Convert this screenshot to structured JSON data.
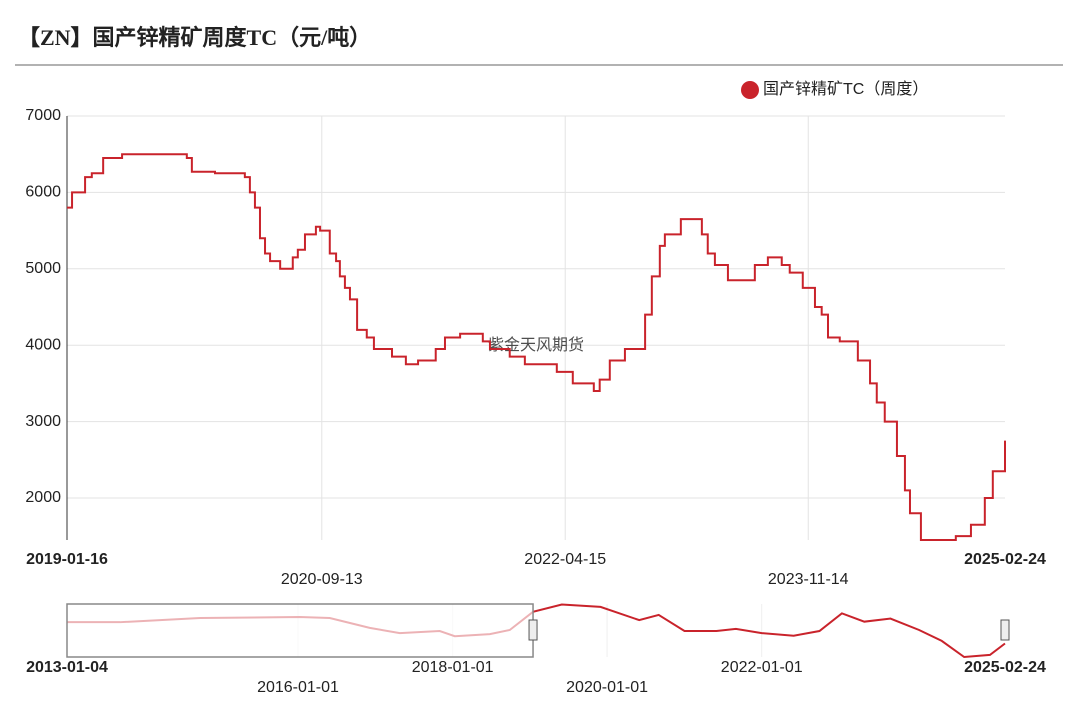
{
  "chart_data": [
    {
      "type": "line",
      "title": "【ZN】国产锌精矿周度TC（元/吨）",
      "legend": "top-right",
      "grid": true,
      "step": true,
      "watermark": "紫金天风期货",
      "x": [
        "2019-01-16",
        "2019-01-28",
        "2019-02-28",
        "2019-03-16",
        "2019-04-12",
        "2019-05-27",
        "2019-10-21",
        "2019-10-28",
        "2019-11-09",
        "2020-01-03",
        "2020-02-27",
        "2020-03-14",
        "2020-03-26",
        "2020-04-07",
        "2020-04-19",
        "2020-05-01",
        "2020-05-13",
        "2020-06-06",
        "2020-07-01",
        "2020-07-06",
        "2020-07-18",
        "2020-08-04",
        "2020-08-30",
        "2020-09-09",
        "2020-10-02",
        "2020-10-17",
        "2020-10-26",
        "2020-11-07",
        "2020-11-19",
        "2020-12-06",
        "2020-12-29",
        "2021-01-15",
        "2021-02-27",
        "2021-04-01",
        "2021-04-30",
        "2021-06-11",
        "2021-07-03",
        "2021-08-08",
        "2021-10-01",
        "2021-10-18",
        "2021-12-04",
        "2022-01-09",
        "2022-03-19",
        "2022-03-26",
        "2022-04-26",
        "2022-05-03",
        "2022-06-15",
        "2022-06-22",
        "2022-07-06",
        "2022-07-30",
        "2022-09-04",
        "2022-10-15",
        "2022-10-22",
        "2022-11-07",
        "2022-11-26",
        "2022-12-08",
        "2023-01-08",
        "2023-01-15",
        "2023-02-27",
        "2023-03-06",
        "2023-03-20",
        "2023-04-06",
        "2023-05-07",
        "2023-07-03",
        "2023-07-10",
        "2023-08-10",
        "2023-09-05",
        "2023-09-12",
        "2023-10-01",
        "2023-11-01",
        "2023-11-30",
        "2023-12-16",
        "2023-12-31",
        "2024-01-28",
        "2024-03-04",
        "2024-03-11",
        "2024-04-09",
        "2024-04-25",
        "2024-05-14",
        "2024-06-12",
        "2024-07-01",
        "2024-07-13",
        "2024-08-01",
        "2024-08-08",
        "2024-10-23",
        "2024-10-30",
        "2024-11-28",
        "2024-12-05",
        "2024-12-31",
        "2025-01-07",
        "2025-01-26",
        "2025-02-24"
      ],
      "series": [
        {
          "name": "国产锌精矿TC（周度）",
          "color": "#c9232b",
          "values": [
            5800,
            6000,
            6200,
            6250,
            6450,
            6500,
            6500,
            6450,
            6270,
            6250,
            6250,
            6200,
            6000,
            5800,
            5400,
            5200,
            5100,
            5000,
            5000,
            5150,
            5250,
            5450,
            5550,
            5500,
            5200,
            5100,
            4900,
            4750,
            4600,
            4200,
            4100,
            3950,
            3850,
            3750,
            3800,
            3950,
            4100,
            4150,
            4050,
            3950,
            3850,
            3750,
            3750,
            3650,
            3650,
            3500,
            3500,
            3400,
            3550,
            3800,
            3950,
            3950,
            4400,
            4900,
            5300,
            5450,
            5450,
            5650,
            5650,
            5450,
            5200,
            5050,
            4850,
            4850,
            5050,
            5150,
            5150,
            5050,
            4950,
            4750,
            4500,
            4400,
            4100,
            4050,
            4050,
            3800,
            3500,
            3250,
            3000,
            2550,
            2100,
            1800,
            1800,
            1450,
            1450,
            1500,
            1500,
            1650,
            1650,
            2000,
            2350,
            2750
          ]
        }
      ],
      "xlim": [
        "2019-01-16",
        "2025-02-24"
      ],
      "xticks": [
        "2019-01-16",
        "2020-09-13",
        "2022-04-15",
        "2023-11-14",
        "2025-02-24"
      ],
      "ylim": [
        1450,
        7000
      ],
      "yticks": [
        2000,
        3000,
        4000,
        5000,
        6000,
        7000
      ]
    },
    {
      "type": "line",
      "color": "#c9232b",
      "x": [
        "2013-01-04",
        "2013-09-12",
        "2014-09-25",
        "2016-01-09",
        "2016-05-30",
        "2016-12-05",
        "2017-04-26",
        "2017-11-01",
        "2018-01-11",
        "2018-06-26",
        "2018-09-28",
        "2019-01-16",
        "2019-06-01",
        "2019-12-01",
        "2020-06-01",
        "2020-09-01",
        "2021-01-01",
        "2021-06-01",
        "2021-09-01",
        "2022-01-01",
        "2022-06-01",
        "2022-10-01",
        "2023-01-15",
        "2023-05-01",
        "2023-09-01",
        "2024-01-15",
        "2024-05-01",
        "2024-08-15",
        "2024-12-15",
        "2025-02-24"
      ],
      "values": [
        4800,
        4800,
        5200,
        5300,
        5200,
        4250,
        3750,
        3950,
        3450,
        3650,
        4050,
        5800,
        6500,
        6270,
        5000,
        5500,
        3950,
        3950,
        4150,
        3750,
        3500,
        3950,
        5650,
        4850,
        5150,
        4050,
        3000,
        1450,
        1650,
        2750
      ],
      "xlim": [
        "2013-01-04",
        "2025-02-24"
      ],
      "xticks": [
        "2013-01-04",
        "2016-01-01",
        "2018-01-01",
        "2020-01-01",
        "2022-01-01",
        "2025-02-24"
      ],
      "ylim": [
        1450,
        6550
      ]
    }
  ]
}
